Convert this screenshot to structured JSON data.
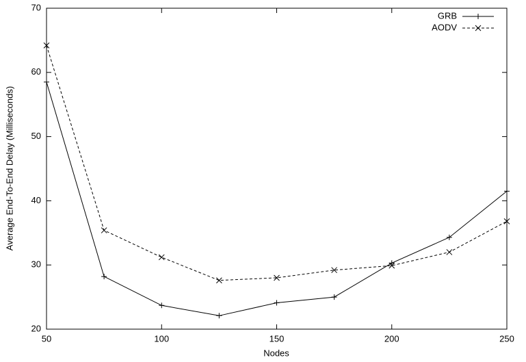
{
  "chart_data": {
    "type": "line",
    "x_label": "Nodes",
    "y_label": "Average End-To-End Delay (Milliseconds)",
    "x": [
      50,
      75,
      100,
      125,
      150,
      175,
      200,
      225,
      250
    ],
    "series": [
      {
        "name": "GRB",
        "color": "#000000",
        "dashed": false,
        "marker": "plus",
        "values": [
          58.5,
          28.2,
          23.7,
          22.1,
          24.1,
          25.0,
          30.3,
          34.3,
          41.5
        ]
      },
      {
        "name": "AODV",
        "color": "#000000",
        "dashed": true,
        "marker": "cross",
        "values": [
          64.2,
          35.4,
          31.2,
          27.6,
          28.0,
          29.2,
          29.9,
          32.0,
          36.8
        ]
      }
    ],
    "xlim": [
      50,
      250
    ],
    "xticks": [
      50,
      100,
      150,
      200,
      250
    ],
    "ylim": [
      20,
      70
    ],
    "yticks": [
      20,
      30,
      40,
      50,
      60,
      70
    ],
    "grid": false,
    "legend": "top-right"
  }
}
